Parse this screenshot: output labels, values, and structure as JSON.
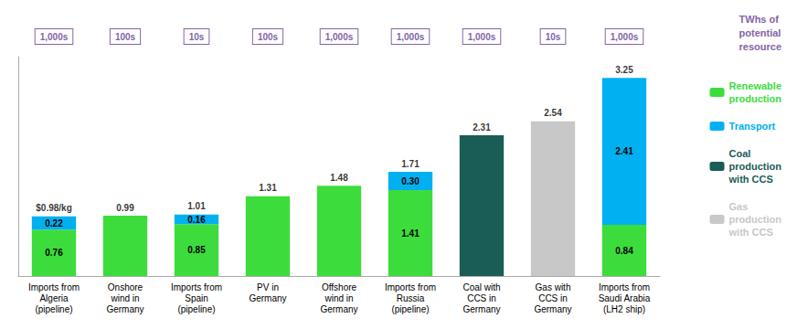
{
  "chart_data": {
    "type": "bar",
    "stacked": true,
    "categories": [
      "Imports from\nAlgeria\n(pipeline)",
      "Onshore\nwind in\nGermany",
      "Imports from\nSpain\n(pipeline)",
      "PV in\nGermany",
      "Offshore\nwind in\nGermany",
      "Imports from\nRussia\n(pipeline)",
      "Coal with\nCCS in\nGermany",
      "Gas with\nCCS in\nGermany",
      "Imports from\nSaudi Arabia\n(LH2 ship)"
    ],
    "series": [
      {
        "name": "Renewable\nproduction",
        "color": "#3ddc3d",
        "values": [
          0.76,
          0.99,
          0.85,
          1.31,
          1.48,
          1.41,
          0.0,
          0.0,
          0.84
        ],
        "value_labels": [
          "0.76",
          null,
          "0.85",
          null,
          null,
          "1.41",
          null,
          null,
          "0.84"
        ]
      },
      {
        "name": "Transport",
        "color": "#00b0f0",
        "values": [
          0.22,
          0.0,
          0.16,
          0.0,
          0.0,
          0.3,
          0.0,
          0.0,
          2.41
        ],
        "value_labels": [
          "0.22",
          null,
          "0.16",
          null,
          null,
          "0.30",
          null,
          null,
          "2.41"
        ]
      },
      {
        "name": "Coal\nproduction\nwith CCS",
        "color": "#1a5c56",
        "values": [
          0.0,
          0.0,
          0.0,
          0.0,
          0.0,
          0.0,
          2.31,
          0.0,
          0.0
        ],
        "value_labels": [
          null,
          null,
          null,
          null,
          null,
          null,
          null,
          null,
          null
        ]
      },
      {
        "name": "Gas\nproduction\nwith CCS",
        "color": "#c8c8c8",
        "values": [
          0.0,
          0.0,
          0.0,
          0.0,
          0.0,
          0.0,
          0.0,
          2.54,
          0.0
        ],
        "value_labels": [
          null,
          null,
          null,
          null,
          null,
          null,
          null,
          null,
          null
        ]
      }
    ],
    "totals": [
      0.98,
      0.99,
      1.01,
      1.31,
      1.48,
      1.71,
      2.31,
      2.54,
      3.25
    ],
    "total_labels": [
      "$0.98/kg",
      "0.99",
      "1.01",
      "1.31",
      "1.48",
      "1.71",
      "2.31",
      "2.54",
      "3.25"
    ],
    "top_labels": {
      "title": "TWhs of\npotential\nresource",
      "labels": [
        "1,000s",
        "100s",
        "10s",
        "100s",
        "1,000s",
        "1,000s",
        "1,000s",
        "10s",
        "1,000s"
      ],
      "color": "#8464a8"
    },
    "ylim": [
      0,
      3.6
    ],
    "grid": false,
    "tick_labels": "x",
    "data_labels": true,
    "legend": "right"
  }
}
